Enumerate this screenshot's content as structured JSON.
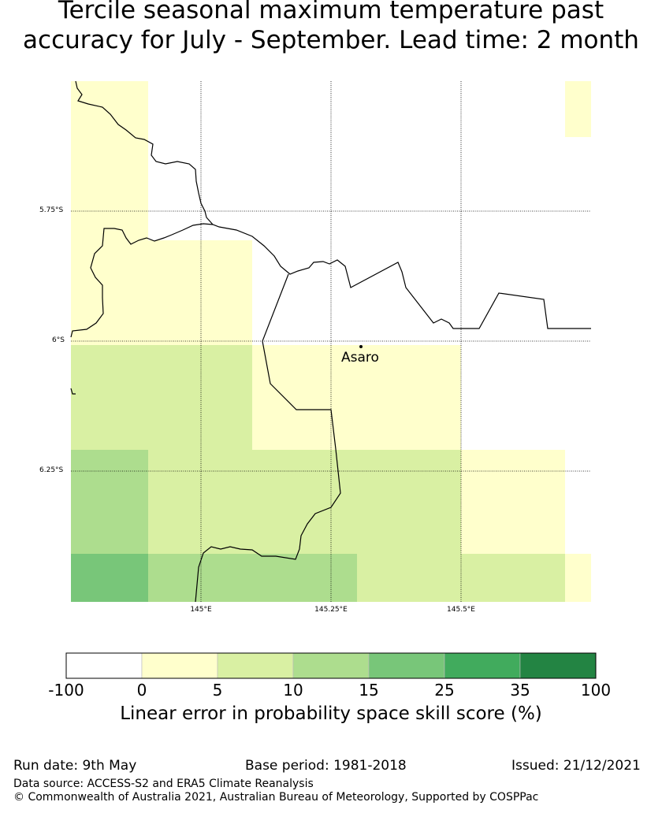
{
  "title_line1": "Tercile seasonal maximum temperature past",
  "title_line2": "accuracy for July - September. Lead time: 2 month",
  "map": {
    "lat_labels": [
      "5.75°S",
      "6°S",
      "6.25°S"
    ],
    "lon_labels": [
      "145°E",
      "145.25°E",
      "145.5°E"
    ],
    "place": {
      "name": "Asaro"
    },
    "colors": {
      "c0": "#ffffcc",
      "c5": "#d9f0a3",
      "c10": "#addd8e",
      "c15": "#78c679"
    }
  },
  "colorbar": {
    "boundaries": [
      "-100",
      "0",
      "5",
      "10",
      "15",
      "25",
      "35",
      "100"
    ],
    "colors": [
      "#ffffff",
      "#ffffcc",
      "#d9f0a3",
      "#addd8e",
      "#78c679",
      "#41ab5d",
      "#238443"
    ],
    "title": "Linear error in probability space skill score (%)"
  },
  "footer": {
    "run_date": "Run date: 9th May",
    "base_period": "Base period: 1981-2018",
    "issued": "Issued: 21/12/2021",
    "data_source": "Data source: ACCESS-S2 and ERA5 Climate Reanalysis",
    "copyright": "© Commonwealth of Australia 2021, Australian Bureau of Meteorology, Supported by COSPPac"
  }
}
